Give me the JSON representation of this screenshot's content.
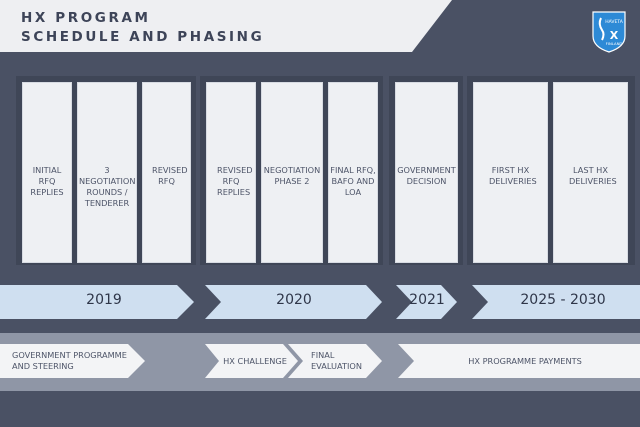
{
  "title": {
    "line1": "HX PROGRAM",
    "line2": "SCHEDULE AND PHASING"
  },
  "logo": {
    "top_text": "HAVETA",
    "bottom_text": "FINLAND",
    "icon": "hx-shield-logo-icon"
  },
  "milestones": [
    {
      "label": "INITIAL RFQ REPLIES"
    },
    {
      "label": "3 NEGOTIATION ROUNDS / TENDERER"
    },
    {
      "label": "REVISED RFQ"
    },
    {
      "label": "REVISED RFQ REPLIES"
    },
    {
      "label": "NEGOTIATION PHASE 2"
    },
    {
      "label": "FINAL RFQ, BAFO AND LOA"
    },
    {
      "label": "GOVERNMENT DECISION"
    },
    {
      "label": "FIRST HX DELIVERIES"
    },
    {
      "label": "LAST HX DELIVERIES"
    }
  ],
  "years": [
    {
      "label": "2019"
    },
    {
      "label": "2020"
    },
    {
      "label": "2021"
    },
    {
      "label": "2025 - 2030"
    }
  ],
  "phases": [
    {
      "label": "GOVERNMENT PROGRAMME AND STEERING"
    },
    {
      "label": "HX CHALLENGE"
    },
    {
      "label": "FINAL EVALUATION"
    },
    {
      "label": "HX PROGRAMME PAYMENTS"
    }
  ],
  "colors": {
    "background": "#4a5164",
    "title_band": "#eeeff2",
    "card": "#eef0f3",
    "timeline_arrow": "#cfdff0",
    "phase_arrow": "#f3f4f6",
    "phase_band": "#8f96a6",
    "logo_blue": "#2d8ad6"
  }
}
